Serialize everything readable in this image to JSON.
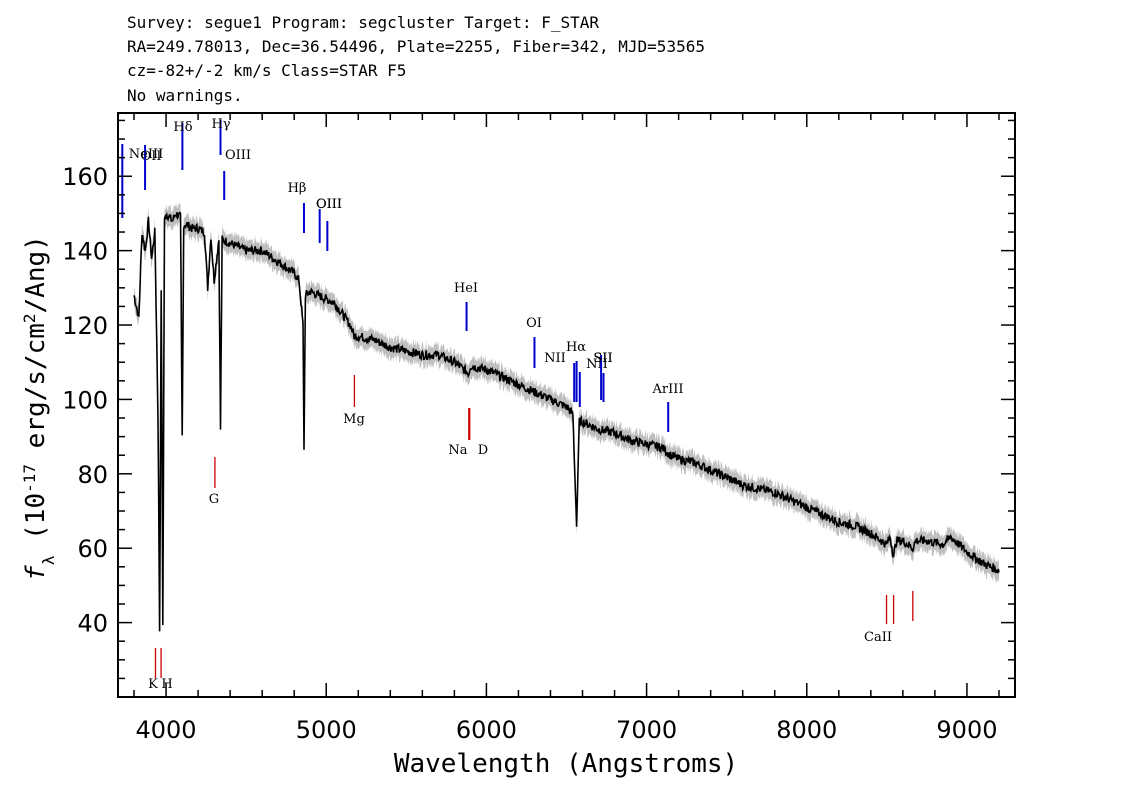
{
  "header": {
    "line1": "Survey: segue1 Program: segcluster Target: F_STAR",
    "line2": "RA=249.78013, Dec=36.54496, Plate=2255, Fiber=342, MJD=53565",
    "line3": "cz=-82+/-2 km/s Class=STAR F5",
    "line4": "No warnings."
  },
  "chart_data": {
    "type": "line",
    "title": "",
    "xlabel": "Wavelength (Angstroms)",
    "ylabel": "f_λ (10^-17 erg/s/cm^2/Ang)",
    "xlim": [
      3700,
      9300
    ],
    "ylim": [
      20,
      177
    ],
    "xticks": [
      4000,
      5000,
      6000,
      7000,
      8000,
      9000
    ],
    "yticks": [
      40,
      60,
      80,
      100,
      120,
      140,
      160
    ],
    "series": [
      {
        "color": "#000000",
        "x": [
          3800,
          3830,
          3850,
          3870,
          3890,
          3910,
          3930,
          3950,
          3960,
          3970,
          3980,
          3990,
          4000,
          4040,
          4060,
          4090,
          4101,
          4110,
          4130,
          4160,
          4200,
          4240,
          4260,
          4280,
          4300,
          4330,
          4340,
          4350,
          4400,
          4500,
          4600,
          4700,
          4800,
          4830,
          4855,
          4861,
          4870,
          4900,
          4950,
          5000,
          5050,
          5100,
          5150,
          5167,
          5175,
          5200,
          5300,
          5400,
          5500,
          5600,
          5700,
          5800,
          5890,
          5900,
          6000,
          6100,
          6200,
          6300,
          6400,
          6500,
          6540,
          6563,
          6580,
          6600,
          6700,
          6800,
          6900,
          7000,
          7100,
          7150,
          7200,
          7300,
          7400,
          7500,
          7600,
          7700,
          7800,
          7900,
          8000,
          8100,
          8200,
          8300,
          8400,
          8498,
          8520,
          8542,
          8560,
          8600,
          8662,
          8680,
          8750,
          8850,
          8900,
          9000,
          9100,
          9200
        ],
        "y": [
          128,
          122,
          145,
          140,
          148,
          138,
          145,
          95,
          38,
          130,
          40,
          148,
          150,
          148,
          150,
          149,
          90,
          147,
          147,
          146,
          146,
          145,
          130,
          144,
          132,
          143,
          92,
          143,
          142,
          140,
          140,
          137,
          134,
          132,
          120,
          87,
          128,
          129,
          128,
          127,
          126,
          123,
          120,
          118,
          117,
          117,
          116,
          114,
          113,
          112,
          112,
          110,
          107,
          109,
          108,
          106,
          104,
          102,
          100,
          98,
          96,
          66,
          94,
          94,
          92,
          91,
          89,
          88,
          87,
          85,
          84,
          83,
          81,
          79,
          77,
          76,
          75,
          73,
          71,
          69,
          67,
          66,
          64,
          61,
          63,
          58,
          62,
          62,
          60,
          62,
          62,
          61,
          63,
          59,
          56,
          54
        ]
      },
      {
        "color": "#bfbfbf",
        "name": "error band"
      }
    ],
    "emission_lines": [
      {
        "label": "OII",
        "x": 3727
      },
      {
        "label": "NeIII",
        "x": 3869
      },
      {
        "label": "Hδ",
        "x": 4102
      },
      {
        "label": "Hγ",
        "x": 4340
      },
      {
        "label": "OIII",
        "x": 4363
      },
      {
        "label": "Hβ",
        "x": 4861
      },
      {
        "label": "OIII",
        "x": 4959
      },
      {
        "label": "OIII",
        "x": 5007
      },
      {
        "label": "HeI",
        "x": 5876
      },
      {
        "label": "OI",
        "x": 6300
      },
      {
        "label": "NII",
        "x": 6548
      },
      {
        "label": "Hα",
        "x": 6563
      },
      {
        "label": "NII",
        "x": 6583
      },
      {
        "label": "SII",
        "x": 6716
      },
      {
        "label": "SII",
        "x": 6731
      },
      {
        "label": "ArIII",
        "x": 7135
      }
    ],
    "absorption_lines": [
      {
        "label": "K",
        "x": 3934
      },
      {
        "label": "H",
        "x": 3969
      },
      {
        "label": "G",
        "x": 4305
      },
      {
        "label": "Mg",
        "x": 5176
      },
      {
        "label": "Na",
        "x": 5890
      },
      {
        "label": "D",
        "x": 5896
      },
      {
        "label": "CaII",
        "x": 8498
      },
      {
        "label": "CaII",
        "x": 8542
      },
      {
        "label": "CaII",
        "x": 8662
      }
    ],
    "emission_color": "#0000cc",
    "absorption_color": "#cc0000",
    "grid": false
  }
}
